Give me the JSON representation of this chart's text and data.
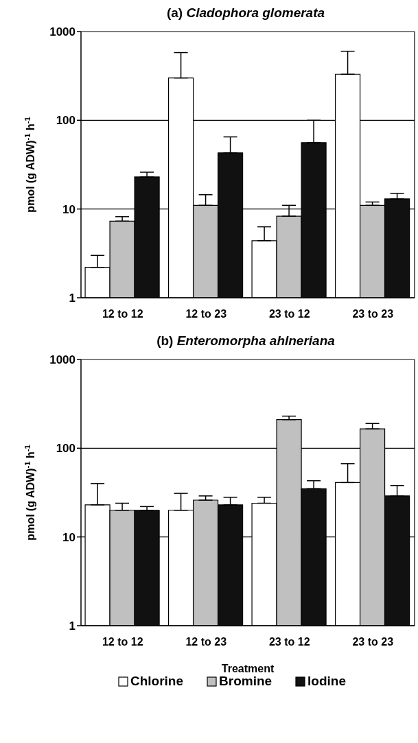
{
  "chart_data": [
    {
      "type": "bar",
      "title": "(a) Cladophora glomerata",
      "ylabel": "pmol (g ADW)$^{-1}$ h$^{-1}$",
      "categories": [
        "12 to 12",
        "12 to 23",
        "23 to 12",
        "23 to 23"
      ],
      "log": "y",
      "ylim": [
        1,
        1000
      ],
      "yticks": [
        1,
        10,
        100,
        1000
      ],
      "grid": "y",
      "series": [
        {
          "color": "#ffffff",
          "values": [
            2.2,
            300,
            4.4,
            330
          ],
          "errors": [
            [
              2.2,
              3.0
            ],
            [
              300,
              580
            ],
            [
              4.4,
              6.3
            ],
            [
              330,
              600
            ]
          ]
        },
        {
          "color": "#c0c0c0",
          "values": [
            7.3,
            11,
            8.3,
            11
          ],
          "errors": [
            [
              7.3,
              8.2
            ],
            [
              11,
              14.5
            ],
            [
              8.3,
              11
            ],
            [
              11,
              12
            ]
          ]
        },
        {
          "color": "#111111",
          "values": [
            23,
            43,
            56,
            13
          ],
          "errors": [
            [
              23,
              26
            ],
            [
              43,
              65
            ],
            [
              56,
              100
            ],
            [
              13,
              15
            ]
          ]
        }
      ]
    },
    {
      "type": "bar",
      "title": "(b) Enteromorpha ahlneriana",
      "ylabel": "pmol (g ADW)$^{-1}$ h$^{-1}$",
      "xlabel": "Treatment",
      "categories": [
        "12 to 12",
        "12 to 23",
        "23 to 12",
        "23 to 23"
      ],
      "log": "y",
      "ylim": [
        1,
        1000
      ],
      "yticks": [
        1,
        10,
        100,
        1000
      ],
      "grid": "y",
      "legend": "bottom",
      "series": [
        {
          "name": "Chlorine",
          "color": "#ffffff",
          "values": [
            23,
            20,
            24,
            41
          ],
          "errors": [
            [
              23,
              40
            ],
            [
              20,
              31
            ],
            [
              24,
              28
            ],
            [
              41,
              67
            ]
          ]
        },
        {
          "name": "Bromine",
          "color": "#c0c0c0",
          "values": [
            20,
            26,
            210,
            165
          ],
          "errors": [
            [
              20,
              24
            ],
            [
              26,
              29
            ],
            [
              210,
              230
            ],
            [
              165,
              190
            ]
          ]
        },
        {
          "name": "Iodine",
          "color": "#111111",
          "values": [
            20,
            23,
            35,
            29
          ],
          "errors": [
            [
              20,
              22
            ],
            [
              23,
              28
            ],
            [
              35,
              43
            ],
            [
              29,
              38
            ]
          ]
        }
      ]
    }
  ]
}
